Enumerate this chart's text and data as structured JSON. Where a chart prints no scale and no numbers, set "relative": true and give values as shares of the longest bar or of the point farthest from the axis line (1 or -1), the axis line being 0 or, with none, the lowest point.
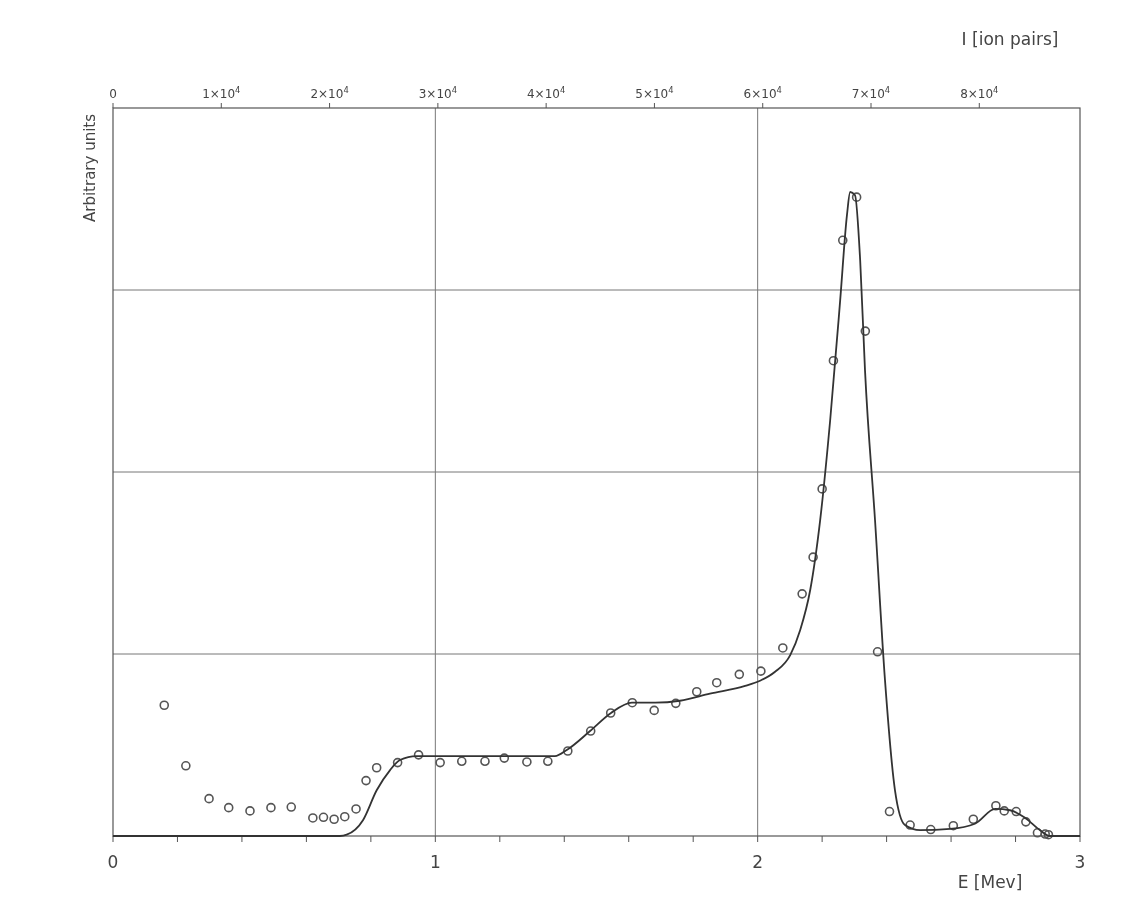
{
  "chart_data": {
    "type": "scatter",
    "relative": true,
    "xlabel": "E [Mev]",
    "x2label": "I [ion pairs]",
    "ylabel": "Arbitrary units",
    "xlim": [
      0,
      3
    ],
    "xticks": [
      0,
      {
        "value": 0.2,
        "label": null
      },
      {
        "value": 0.4,
        "label": null
      },
      {
        "value": 0.6,
        "label": null
      },
      {
        "value": 0.8,
        "label": null
      },
      1,
      {
        "value": 1.2,
        "label": null
      },
      {
        "value": 1.4,
        "label": null
      },
      {
        "value": 1.6,
        "label": null
      },
      {
        "value": 1.8,
        "label": null
      },
      2,
      {
        "value": 2.2,
        "label": null
      },
      {
        "value": 2.4,
        "label": null
      },
      {
        "value": 2.6,
        "label": null
      },
      {
        "value": 2.8,
        "label": null
      },
      3
    ],
    "x2lim": [
      0,
      89300
    ],
    "x2ticks": [
      0,
      {
        "value": 10000,
        "label": "1×10$^{4}$"
      },
      {
        "value": 20000,
        "label": "2×10$^{4}$"
      },
      {
        "value": 30000,
        "label": "3×10$^{4}$"
      },
      {
        "value": 40000,
        "label": "4×10$^{4}$"
      },
      {
        "value": 50000,
        "label": "5×10$^{4}$"
      },
      {
        "value": 60000,
        "label": "6×10$^{4}$"
      },
      {
        "value": 70000,
        "label": "7×10$^{4}$"
      },
      {
        "value": 80000,
        "label": "8×10$^{4}$"
      }
    ],
    "grid": true,
    "series": [
      {
        "color": "#555555",
        "marker": "circle",
        "x": [
          0.159,
          0.226,
          0.298,
          0.359,
          0.425,
          0.49,
          0.553,
          0.62,
          0.653,
          0.686,
          0.719,
          0.754,
          0.785,
          0.818,
          0.883,
          0.948,
          1.015,
          1.082,
          1.154,
          1.214,
          1.284,
          1.349,
          1.411,
          1.482,
          1.544,
          1.611,
          1.679,
          1.746,
          1.811,
          1.873,
          1.943,
          2.01,
          2.078,
          2.138,
          2.172,
          2.2,
          2.235,
          2.264,
          2.307,
          2.334,
          2.372,
          2.409,
          2.473,
          2.537,
          2.607,
          2.669,
          2.739,
          2.765,
          2.802,
          2.832,
          2.868,
          2.892,
          2.902
        ],
        "values": [
          0.203,
          0.109,
          0.058,
          0.044,
          0.039,
          0.044,
          0.045,
          0.028,
          0.029,
          0.026,
          0.03,
          0.042,
          0.086,
          0.106,
          0.114,
          0.126,
          0.114,
          0.116,
          0.116,
          0.121,
          0.115,
          0.116,
          0.132,
          0.163,
          0.191,
          0.207,
          0.195,
          0.206,
          0.224,
          0.238,
          0.251,
          0.256,
          0.292,
          0.376,
          0.433,
          0.539,
          0.738,
          0.925,
          0.992,
          0.784,
          0.286,
          0.038,
          0.017,
          0.01,
          0.016,
          0.026,
          0.047,
          0.039,
          0.038,
          0.022,
          0.005,
          0.003,
          0.002
        ]
      },
      {
        "type": "line",
        "color": "#333333",
        "line_style": "solid",
        "marker": "none",
        "x": [
          0,
          0.704,
          0.725,
          0.776,
          0.818,
          0.859,
          0.89,
          0.942,
          1.046,
          1.201,
          1.371,
          1.409,
          1.48,
          1.545,
          1.61,
          1.682,
          1.759,
          1.852,
          1.961,
          2.007,
          2.054,
          2.101,
          2.132,
          2.163,
          2.194,
          2.225,
          2.256,
          2.277,
          2.287,
          2.302,
          2.318,
          2.333,
          2.364,
          2.395,
          2.426,
          2.457,
          2.504,
          2.597,
          2.674,
          2.737,
          2.783,
          2.83,
          2.876,
          2.907,
          3.0
        ],
        "values": [
          0,
          0,
          0.002,
          0.025,
          0.071,
          0.102,
          0.118,
          0.124,
          0.124,
          0.124,
          0.124,
          0.134,
          0.163,
          0.191,
          0.207,
          0.207,
          0.21,
          0.221,
          0.233,
          0.241,
          0.255,
          0.281,
          0.32,
          0.382,
          0.491,
          0.646,
          0.832,
          0.964,
          1.0,
          0.995,
          0.894,
          0.723,
          0.491,
          0.242,
          0.071,
          0.017,
          0.009,
          0.011,
          0.019,
          0.042,
          0.04,
          0.028,
          0.009,
          0,
          0
        ]
      }
    ]
  }
}
